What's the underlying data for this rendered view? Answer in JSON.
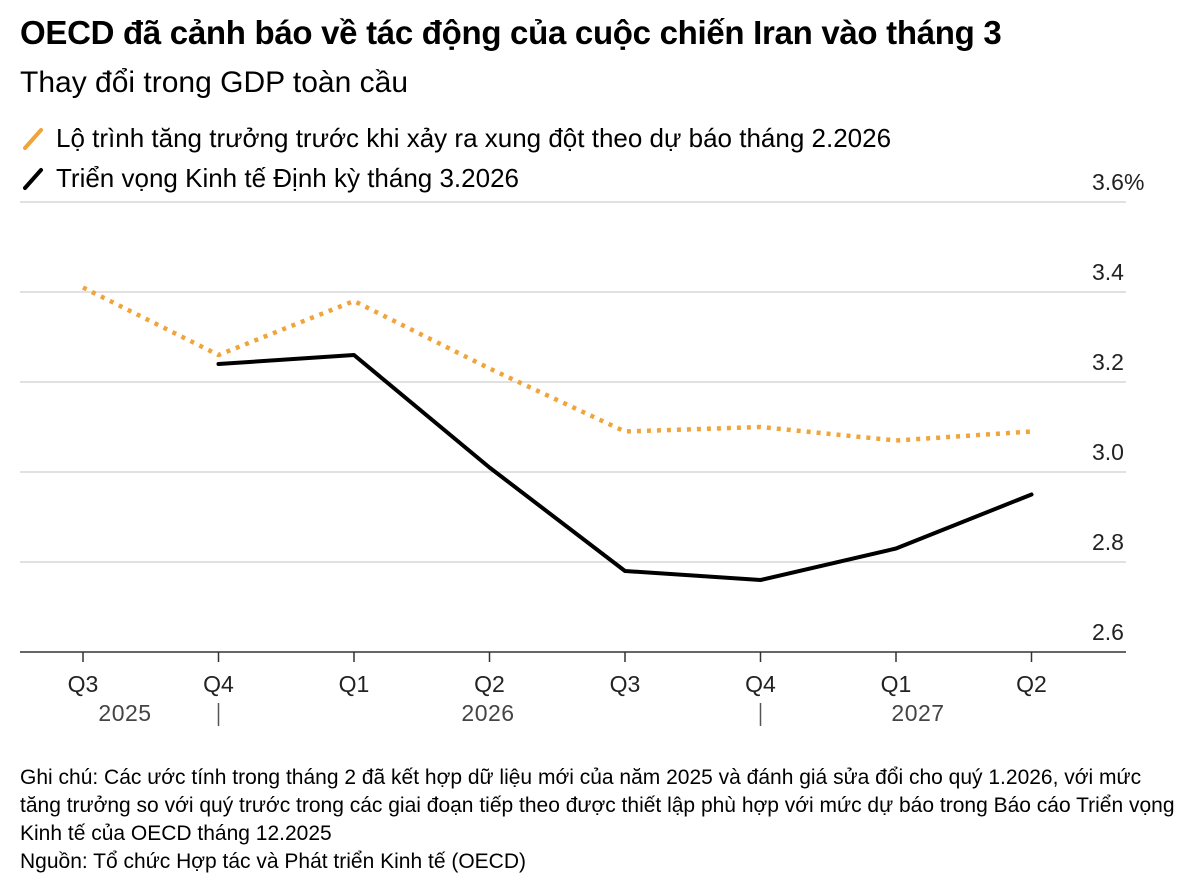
{
  "header": {
    "title": "OECD đã cảnh báo về tác động của cuộc chiến Iran vào tháng 3",
    "subtitle": "Thay đổi trong GDP toàn cầu"
  },
  "colors": {
    "prewar": "#f0a43a",
    "march": "#000000",
    "grid": "#cfcfcf",
    "axis": "#333333"
  },
  "chart_data": {
    "type": "line",
    "title": "OECD đã cảnh báo về tác động của cuộc chiến Iran vào tháng 3",
    "subtitle": "Thay đổi trong GDP toàn cầu",
    "categories": [
      "Q3",
      "Q4",
      "Q1",
      "Q2",
      "Q3",
      "Q4",
      "Q1",
      "Q2"
    ],
    "year_labels": [
      "2025",
      "2026",
      "2027"
    ],
    "y_ticks": [
      "3.6%",
      "3.4",
      "3.2",
      "3.0",
      "2.8",
      "2.6"
    ],
    "y_tick_values": [
      3.6,
      3.4,
      3.2,
      3.0,
      2.8,
      2.6
    ],
    "ylim": [
      2.6,
      3.6
    ],
    "legend_position": "top-left",
    "grid": true,
    "series": [
      {
        "name": "Lộ trình tăng trưởng trước khi xảy ra xung đột theo dự báo tháng 2.2026",
        "style": "dotted",
        "color": "#f0a43a",
        "values": [
          3.41,
          3.26,
          3.38,
          3.23,
          3.09,
          3.1,
          3.07,
          3.09
        ]
      },
      {
        "name": "Triển vọng Kinh tế Định kỳ tháng 3.2026",
        "style": "solid",
        "color": "#000000",
        "values": [
          null,
          3.24,
          3.26,
          3.01,
          2.78,
          2.76,
          2.83,
          2.95
        ]
      }
    ]
  },
  "footer": {
    "note": "Ghi chú: Các ước tính trong tháng 2 đã kết hợp dữ liệu mới của năm 2025 và đánh giá sửa đổi cho quý 1.2026, với mức tăng trưởng so với quý trước trong các giai đoạn tiếp theo được thiết lập phù hợp với mức dự báo trong Báo cáo Triển vọng Kinh tế của OECD tháng 12.2025",
    "source": "Nguồn: Tổ chức Hợp tác và Phát triển Kinh tế (OECD)"
  }
}
